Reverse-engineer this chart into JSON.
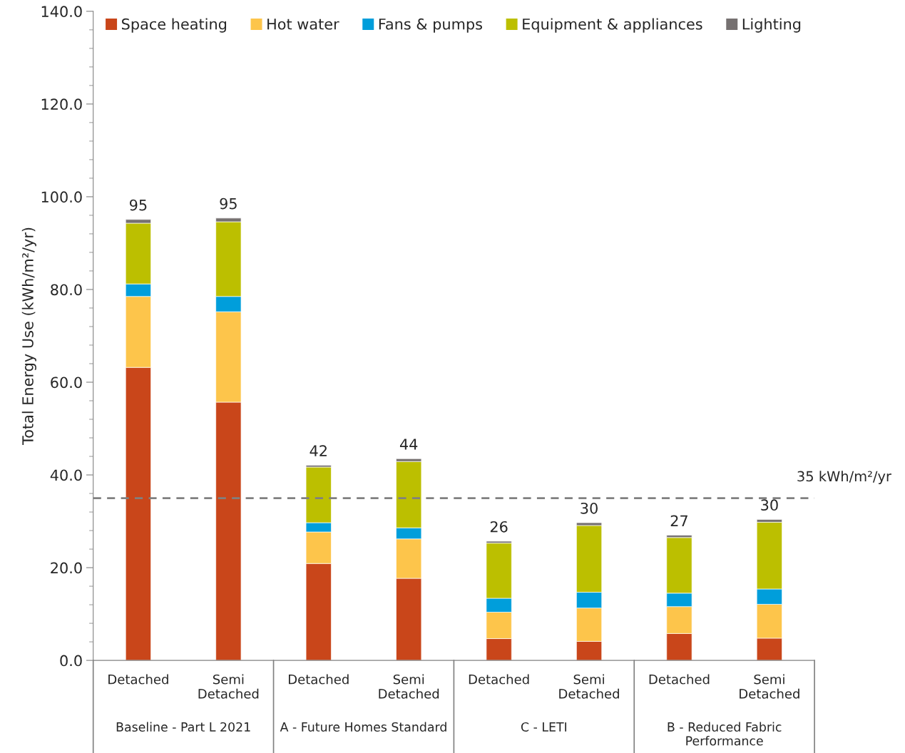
{
  "chart_data": {
    "type": "bar",
    "stacked": true,
    "ylabel": "Total Energy Use (kWh/m²/yr)",
    "categories": [
      "Detached",
      "Semi\nDetached",
      "Detached",
      "Semi\nDetached",
      "Detached",
      "Semi\nDetached",
      "Detached",
      "Semi\nDetached"
    ],
    "series": [
      {
        "name": "Space heating",
        "color": "#c9461a",
        "values": [
          63.2,
          55.7,
          20.9,
          17.7,
          4.7,
          4.1,
          5.8,
          4.8
        ]
      },
      {
        "name": "Hot water",
        "color": "#fdc54b",
        "values": [
          15.3,
          19.5,
          6.8,
          8.5,
          5.7,
          7.2,
          5.8,
          7.3
        ]
      },
      {
        "name": "Fans & pumps",
        "color": "#009edb",
        "values": [
          2.7,
          3.3,
          2.0,
          2.4,
          3.0,
          3.4,
          2.9,
          3.3
        ]
      },
      {
        "name": "Equipment & appliances",
        "color": "#bcbf00",
        "values": [
          13.1,
          16.1,
          12.0,
          14.3,
          11.9,
          14.4,
          12.0,
          14.4
        ]
      },
      {
        "name": "Lighting",
        "color": "#767171",
        "values": [
          0.8,
          0.8,
          0.4,
          0.6,
          0.4,
          0.6,
          0.5,
          0.6
        ]
      }
    ],
    "totals": [
      "95",
      "95",
      "42",
      "44",
      "26",
      "30",
      "27",
      "30"
    ],
    "ylim": [
      0,
      140
    ],
    "yticks": [
      {
        "value": 0,
        "label": "0.0"
      },
      {
        "value": 20,
        "label": "20.0"
      },
      {
        "value": 40,
        "label": "40.0"
      },
      {
        "value": 60,
        "label": "60.0"
      },
      {
        "value": 80,
        "label": "80.0"
      },
      {
        "value": 100,
        "label": "100.0"
      },
      {
        "value": 120,
        "label": "120.0"
      },
      {
        "value": 140,
        "label": "140.0"
      }
    ],
    "ref_lines": [
      {
        "axis": "y",
        "value": 35,
        "label": "35 kWh/m²/yr",
        "color": "#808080",
        "line_style": "dashed"
      }
    ],
    "annotations": [
      "Baseline - Part L 2021",
      "A - Future Homes Standard",
      "C - LETI",
      "B - Reduced Fabric\nPerformance"
    ],
    "grid": false,
    "legend": "top"
  }
}
